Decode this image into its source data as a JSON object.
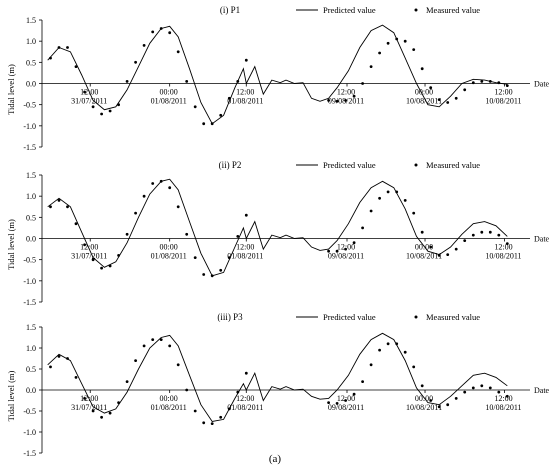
{
  "figure_label": "(a)",
  "x_axis_label": "Date",
  "chart_data": [
    {
      "type": "line",
      "title": "(i) P1",
      "ylabel": "Tidal level (m)",
      "xlabel": "Date",
      "ylim": [
        -1.5,
        1.5
      ],
      "yticks": [
        -1.5,
        -1.0,
        -0.5,
        0.0,
        0.5,
        1.0,
        1.5
      ],
      "tick_labels": [
        {
          "t": 0.17,
          "time": "12:00",
          "date": "31/07/2011"
        },
        {
          "t": 0.45,
          "time": "00:00",
          "date": "01/08/2011"
        },
        {
          "t": 0.72,
          "time": "12:00",
          "date": "01/08/2011"
        },
        {
          "t": 1.075,
          "time": "12:00",
          "date": "09/08/2011"
        },
        {
          "t": 1.35,
          "time": "00:00",
          "date": "10/08/2011"
        },
        {
          "t": 1.63,
          "time": "12:00",
          "date": "10/08/2011"
        }
      ],
      "series": [
        {
          "name": "Predicted value",
          "style": "line",
          "x": [
            0.02,
            0.06,
            0.1,
            0.14,
            0.18,
            0.22,
            0.26,
            0.3,
            0.34,
            0.38,
            0.42,
            0.45,
            0.48,
            0.52,
            0.56,
            0.6,
            0.64,
            0.68,
            0.71,
            0.72,
            0.75,
            0.78,
            0.81,
            0.84,
            0.86,
            0.89,
            0.92,
            0.95,
            0.98,
            1.01,
            1.04,
            1.08,
            1.12,
            1.16,
            1.2,
            1.24,
            1.28,
            1.32,
            1.36,
            1.4,
            1.44,
            1.48,
            1.52,
            1.56,
            1.6,
            1.64
          ],
          "y": [
            0.55,
            0.85,
            0.75,
            0.2,
            -0.4,
            -0.62,
            -0.55,
            -0.15,
            0.4,
            0.95,
            1.3,
            1.35,
            1.1,
            0.35,
            -0.45,
            -0.95,
            -0.75,
            -0.1,
            0.35,
            0.0,
            0.4,
            -0.25,
            0.08,
            0.02,
            0.08,
            0.0,
            0.02,
            -0.35,
            -0.42,
            -0.35,
            -0.1,
            0.3,
            0.85,
            1.25,
            1.38,
            1.2,
            0.6,
            0.0,
            -0.5,
            -0.55,
            -0.3,
            0.0,
            0.1,
            0.08,
            0.02,
            -0.02
          ]
        },
        {
          "name": "Measured value",
          "style": "dot",
          "x": [
            0.03,
            0.06,
            0.09,
            0.12,
            0.15,
            0.18,
            0.21,
            0.24,
            0.27,
            0.3,
            0.33,
            0.36,
            0.39,
            0.42,
            0.45,
            0.48,
            0.51,
            0.54,
            0.57,
            0.6,
            0.63,
            0.66,
            0.69,
            0.72,
            1.01,
            1.04,
            1.07,
            1.1,
            1.13,
            1.16,
            1.19,
            1.22,
            1.25,
            1.28,
            1.31,
            1.34,
            1.37,
            1.4,
            1.43,
            1.46,
            1.49,
            1.52,
            1.55,
            1.58,
            1.61,
            1.64
          ],
          "y": [
            0.6,
            0.85,
            0.85,
            0.4,
            -0.2,
            -0.55,
            -0.72,
            -0.65,
            -0.5,
            0.05,
            0.5,
            0.9,
            1.22,
            1.3,
            1.2,
            0.75,
            0.05,
            -0.55,
            -0.95,
            -0.95,
            -0.75,
            -0.35,
            0.05,
            0.55,
            -0.4,
            -0.42,
            -0.4,
            -0.3,
            0.0,
            0.4,
            0.72,
            0.95,
            1.05,
            1.0,
            0.8,
            0.35,
            -0.1,
            -0.38,
            -0.45,
            -0.35,
            -0.15,
            0.02,
            0.05,
            0.05,
            0.02,
            -0.05
          ]
        }
      ]
    },
    {
      "type": "line",
      "title": "(ii) P2",
      "ylabel": "Tidal level (m)",
      "xlabel": "Date",
      "ylim": [
        -1.5,
        1.5
      ],
      "yticks": [
        -1.5,
        -1.0,
        -0.5,
        0.0,
        0.5,
        1.0,
        1.5
      ],
      "tick_labels": [
        {
          "t": 0.17,
          "time": "12:00",
          "date": "31/07/2011"
        },
        {
          "t": 0.45,
          "time": "00:00",
          "date": "01/08/2011"
        },
        {
          "t": 0.72,
          "time": "12:00",
          "date": "01/08/2011"
        },
        {
          "t": 1.075,
          "time": "12:00",
          "date": "09/08/2011"
        },
        {
          "t": 1.35,
          "time": "00:00",
          "date": "10/08/2011"
        },
        {
          "t": 1.63,
          "time": "12:00",
          "date": "10/08/2011"
        }
      ],
      "series": [
        {
          "name": "Predicted value",
          "style": "line",
          "x": [
            0.02,
            0.06,
            0.1,
            0.14,
            0.18,
            0.22,
            0.26,
            0.3,
            0.34,
            0.38,
            0.42,
            0.45,
            0.48,
            0.52,
            0.56,
            0.6,
            0.64,
            0.68,
            0.71,
            0.72,
            0.75,
            0.78,
            0.81,
            0.84,
            0.86,
            0.89,
            0.92,
            0.95,
            0.98,
            1.01,
            1.04,
            1.08,
            1.12,
            1.16,
            1.2,
            1.24,
            1.28,
            1.32,
            1.36,
            1.4,
            1.44,
            1.48,
            1.52,
            1.56,
            1.6,
            1.64
          ],
          "y": [
            0.75,
            0.95,
            0.75,
            0.15,
            -0.45,
            -0.68,
            -0.55,
            -0.1,
            0.5,
            1.05,
            1.35,
            1.4,
            1.15,
            0.4,
            -0.35,
            -0.88,
            -0.8,
            -0.2,
            0.25,
            0.0,
            0.4,
            -0.25,
            0.08,
            0.02,
            0.08,
            0.0,
            0.02,
            -0.2,
            -0.28,
            -0.25,
            -0.05,
            0.35,
            0.85,
            1.2,
            1.35,
            1.2,
            0.7,
            0.05,
            -0.3,
            -0.38,
            -0.2,
            0.1,
            0.35,
            0.4,
            0.3,
            0.05
          ]
        },
        {
          "name": "Measured value",
          "style": "dot",
          "x": [
            0.03,
            0.06,
            0.09,
            0.12,
            0.15,
            0.18,
            0.21,
            0.24,
            0.27,
            0.3,
            0.33,
            0.36,
            0.39,
            0.42,
            0.45,
            0.48,
            0.51,
            0.54,
            0.57,
            0.6,
            0.63,
            0.66,
            0.69,
            0.72,
            1.01,
            1.04,
            1.07,
            1.1,
            1.13,
            1.16,
            1.19,
            1.22,
            1.25,
            1.28,
            1.31,
            1.34,
            1.37,
            1.4,
            1.43,
            1.46,
            1.49,
            1.52,
            1.55,
            1.58,
            1.61,
            1.64
          ],
          "y": [
            0.75,
            0.9,
            0.75,
            0.35,
            -0.15,
            -0.5,
            -0.7,
            -0.65,
            -0.4,
            0.1,
            0.6,
            1.0,
            1.3,
            1.35,
            1.2,
            0.75,
            0.1,
            -0.45,
            -0.85,
            -0.88,
            -0.75,
            -0.45,
            0.05,
            0.55,
            -0.3,
            -0.3,
            -0.25,
            -0.1,
            0.25,
            0.65,
            0.95,
            1.1,
            1.1,
            0.9,
            0.6,
            0.15,
            -0.2,
            -0.4,
            -0.38,
            -0.25,
            -0.05,
            0.08,
            0.15,
            0.15,
            0.08,
            -0.12
          ]
        }
      ]
    },
    {
      "type": "line",
      "title": "(iii) P3",
      "ylabel": "Tidal level (m)",
      "xlabel": "Date",
      "ylim": [
        -1.5,
        1.5
      ],
      "yticks": [
        -1.5,
        -1.0,
        -0.5,
        0.0,
        0.5,
        1.0,
        1.5
      ],
      "tick_labels": [
        {
          "t": 0.17,
          "time": "12:00",
          "date": "31/07/2011"
        },
        {
          "t": 0.45,
          "time": "00:00",
          "date": "01/08/2011"
        },
        {
          "t": 0.72,
          "time": "12:00",
          "date": "01/08/2011"
        },
        {
          "t": 1.075,
          "time": "12:00",
          "date": "09/08/2011"
        },
        {
          "t": 1.35,
          "time": "00:00",
          "date": "10/08/2011"
        },
        {
          "t": 1.63,
          "time": "12:00",
          "date": "10/08/2011"
        }
      ],
      "series": [
        {
          "name": "Predicted value",
          "style": "line",
          "x": [
            0.02,
            0.06,
            0.1,
            0.14,
            0.18,
            0.22,
            0.26,
            0.3,
            0.34,
            0.38,
            0.42,
            0.45,
            0.48,
            0.52,
            0.56,
            0.6,
            0.64,
            0.68,
            0.71,
            0.72,
            0.75,
            0.78,
            0.81,
            0.84,
            0.86,
            0.89,
            0.92,
            0.95,
            0.98,
            1.01,
            1.04,
            1.08,
            1.12,
            1.16,
            1.2,
            1.24,
            1.28,
            1.32,
            1.36,
            1.4,
            1.44,
            1.48,
            1.52,
            1.56,
            1.6,
            1.64
          ],
          "y": [
            0.6,
            0.85,
            0.7,
            0.15,
            -0.4,
            -0.55,
            -0.45,
            -0.05,
            0.5,
            1.0,
            1.25,
            1.3,
            1.05,
            0.35,
            -0.35,
            -0.75,
            -0.7,
            -0.2,
            0.15,
            0.0,
            0.4,
            -0.25,
            0.08,
            0.02,
            0.08,
            0.0,
            0.02,
            -0.15,
            -0.22,
            -0.2,
            0.0,
            0.35,
            0.85,
            1.2,
            1.35,
            1.2,
            0.7,
            0.05,
            -0.3,
            -0.35,
            -0.15,
            0.1,
            0.35,
            0.4,
            0.3,
            0.1
          ]
        },
        {
          "name": "Measured value",
          "style": "dot",
          "x": [
            0.03,
            0.06,
            0.09,
            0.12,
            0.15,
            0.18,
            0.21,
            0.24,
            0.27,
            0.3,
            0.33,
            0.36,
            0.39,
            0.42,
            0.45,
            0.48,
            0.51,
            0.54,
            0.57,
            0.6,
            0.63,
            0.66,
            0.69,
            0.72,
            1.01,
            1.04,
            1.07,
            1.1,
            1.13,
            1.16,
            1.19,
            1.22,
            1.25,
            1.28,
            1.31,
            1.34,
            1.37,
            1.4,
            1.43,
            1.46,
            1.49,
            1.52,
            1.55,
            1.58,
            1.61,
            1.64
          ],
          "y": [
            0.55,
            0.8,
            0.75,
            0.3,
            -0.2,
            -0.5,
            -0.65,
            -0.55,
            -0.3,
            0.2,
            0.7,
            1.05,
            1.2,
            1.2,
            1.05,
            0.6,
            0.0,
            -0.5,
            -0.78,
            -0.8,
            -0.65,
            -0.45,
            -0.05,
            0.4,
            -0.3,
            -0.32,
            -0.25,
            -0.1,
            0.2,
            0.6,
            0.95,
            1.1,
            1.1,
            0.9,
            0.55,
            0.1,
            -0.25,
            -0.4,
            -0.35,
            -0.2,
            -0.05,
            0.05,
            0.1,
            0.05,
            -0.05,
            -0.15
          ]
        }
      ]
    }
  ]
}
